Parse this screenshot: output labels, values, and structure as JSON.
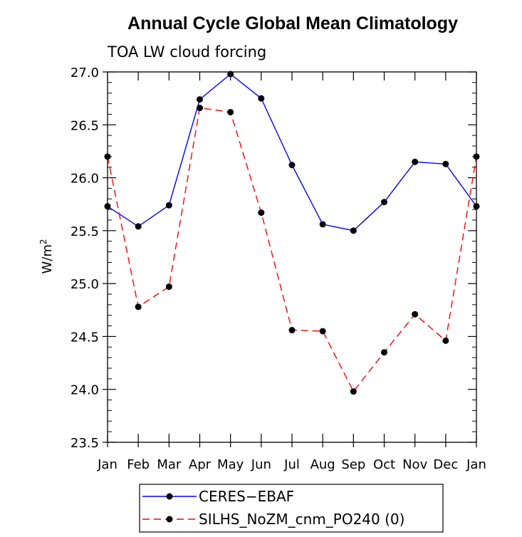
{
  "chart_data": {
    "type": "line",
    "title": "Annual Cycle Global Mean Climatology",
    "subtitle": "TOA LW cloud forcing",
    "ylabel_base": "W/m",
    "ylabel_sup": "2",
    "xlabel": "",
    "ylim": [
      23.5,
      27.0
    ],
    "yticks": [
      23.5,
      24.0,
      24.5,
      25.0,
      25.5,
      26.0,
      26.5,
      27.0
    ],
    "ytick_labels": [
      "23.5",
      "24.0",
      "24.5",
      "25.0",
      "25.5",
      "26.0",
      "26.5",
      "27.0"
    ],
    "categories": [
      "Jan",
      "Feb",
      "Mar",
      "Apr",
      "May",
      "Jun",
      "Jul",
      "Aug",
      "Sep",
      "Oct",
      "Nov",
      "Dec",
      "Jan"
    ],
    "series": [
      {
        "name": "CERES−EBAF",
        "color": "#0000ff",
        "dash": "solid",
        "values": [
          25.73,
          25.54,
          25.74,
          26.74,
          26.98,
          26.75,
          26.12,
          25.56,
          25.5,
          25.77,
          26.15,
          26.13,
          25.73
        ]
      },
      {
        "name": "SILHS_NoZM_cnm_PO240 (0)",
        "color": "#ff0000",
        "dash": "dashed",
        "values": [
          26.2,
          24.78,
          24.97,
          26.66,
          26.62,
          25.67,
          24.56,
          24.55,
          23.98,
          24.35,
          24.71,
          24.46,
          26.2
        ]
      }
    ],
    "legend_position": "bottom-center",
    "grid": false
  }
}
